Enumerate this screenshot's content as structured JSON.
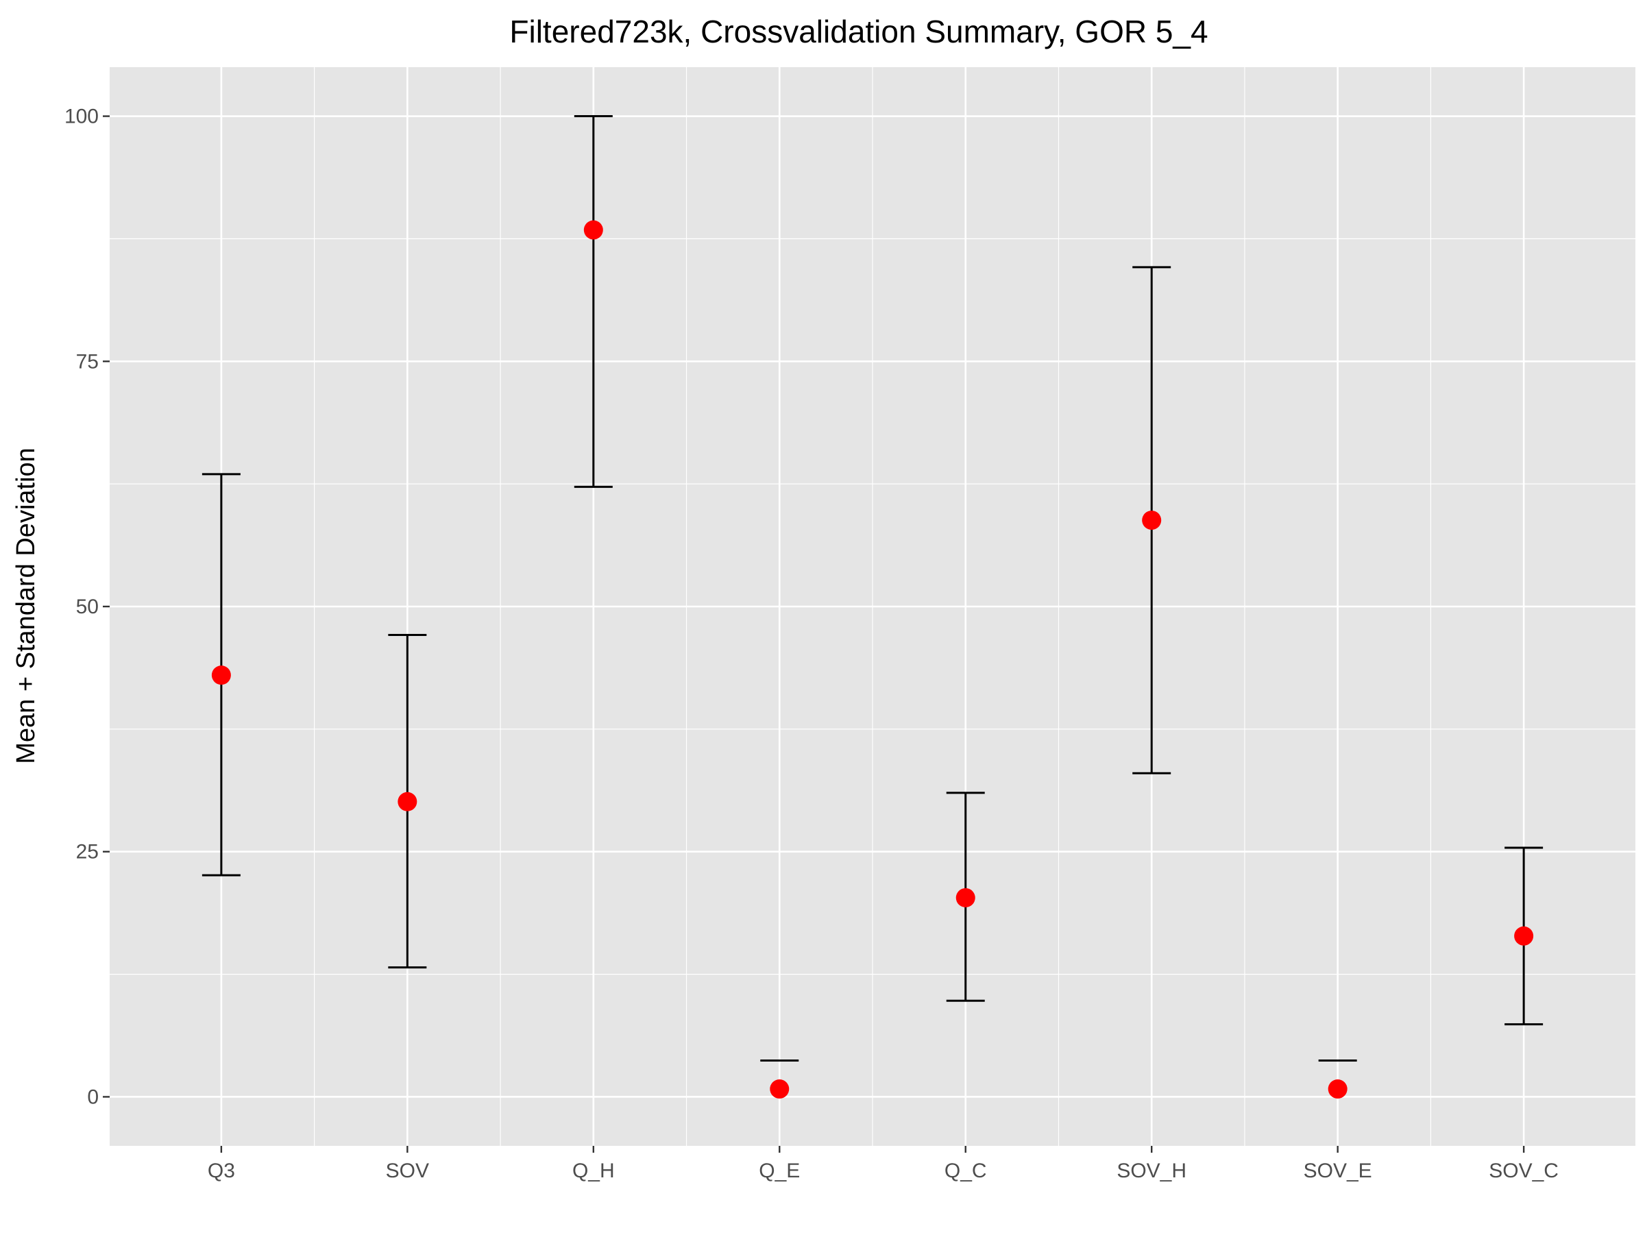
{
  "chart_data": {
    "type": "scatter",
    "title": "Filtered723k, Crossvalidation Summary, GOR 5_4",
    "xlabel": "",
    "ylabel": "Mean + Standard Deviation",
    "categories": [
      "Q3",
      "SOV",
      "Q_H",
      "Q_E",
      "Q_C",
      "SOV_H",
      "SOV_E",
      "SOV_C"
    ],
    "series": [
      {
        "mean": [
          43.0,
          30.1,
          88.4,
          0.8,
          20.3,
          58.8,
          0.8,
          16.4
        ],
        "error_lower": [
          22.6,
          13.2,
          62.2,
          null,
          9.8,
          33.0,
          null,
          7.4
        ],
        "error_upper": [
          63.5,
          47.1,
          100.0,
          3.7,
          31.0,
          84.6,
          3.7,
          25.4
        ]
      }
    ],
    "ylim": [
      -5,
      105
    ],
    "yticks": [
      0,
      25,
      50,
      75,
      100
    ],
    "grid": true,
    "legend": "none",
    "colors": {
      "panel_background": "#e5e5e5",
      "grid_line": "#ffffff",
      "point": "#ff0000",
      "error_bar": "#000000",
      "tick_label": "#4d4d4d",
      "axis_tick": "#333333"
    }
  }
}
